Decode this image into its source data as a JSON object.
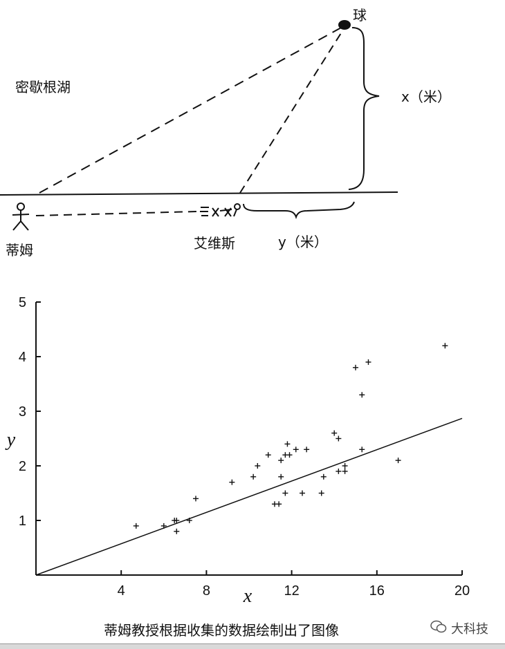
{
  "diagram": {
    "ball_label": "球",
    "lake_label": "密歇根湖",
    "x_label": "x（米）",
    "tim_label": "蒂姆",
    "elvis_label": "艾维斯",
    "y_label": "y（米）"
  },
  "chart_data": {
    "type": "scatter",
    "xlabel": "x",
    "ylabel": "y",
    "xlim": [
      0,
      20
    ],
    "ylim": [
      0,
      5
    ],
    "x_ticks": [
      4,
      8,
      12,
      16,
      20
    ],
    "y_ticks": [
      1,
      2,
      3,
      4,
      5
    ],
    "grid": false,
    "points": [
      [
        4.7,
        0.9
      ],
      [
        6.0,
        0.9
      ],
      [
        6.5,
        1.0
      ],
      [
        6.6,
        0.8
      ],
      [
        6.6,
        1.0
      ],
      [
        7.2,
        1.0
      ],
      [
        7.5,
        1.4
      ],
      [
        9.2,
        1.7
      ],
      [
        10.2,
        1.8
      ],
      [
        10.4,
        2.0
      ],
      [
        10.9,
        2.2
      ],
      [
        11.2,
        1.3
      ],
      [
        11.4,
        1.3
      ],
      [
        11.5,
        1.8
      ],
      [
        11.5,
        2.1
      ],
      [
        11.7,
        1.5
      ],
      [
        11.7,
        2.2
      ],
      [
        11.8,
        2.4
      ],
      [
        11.9,
        2.2
      ],
      [
        12.2,
        2.3
      ],
      [
        12.5,
        1.5
      ],
      [
        12.7,
        2.3
      ],
      [
        13.4,
        1.5
      ],
      [
        13.5,
        1.8
      ],
      [
        14.0,
        2.6
      ],
      [
        14.2,
        1.9
      ],
      [
        14.2,
        2.5
      ],
      [
        14.5,
        1.9
      ],
      [
        14.5,
        2.0
      ],
      [
        15.0,
        3.8
      ],
      [
        15.3,
        3.3
      ],
      [
        15.3,
        2.3
      ],
      [
        15.6,
        3.9
      ],
      [
        17.0,
        2.1
      ],
      [
        19.2,
        4.2
      ]
    ],
    "fit_line": {
      "x": [
        0,
        20
      ],
      "y": [
        0,
        2.87
      ]
    }
  },
  "caption": "蒂姆教授根据收集的数据绘制出了图像",
  "watermark": "大科技"
}
